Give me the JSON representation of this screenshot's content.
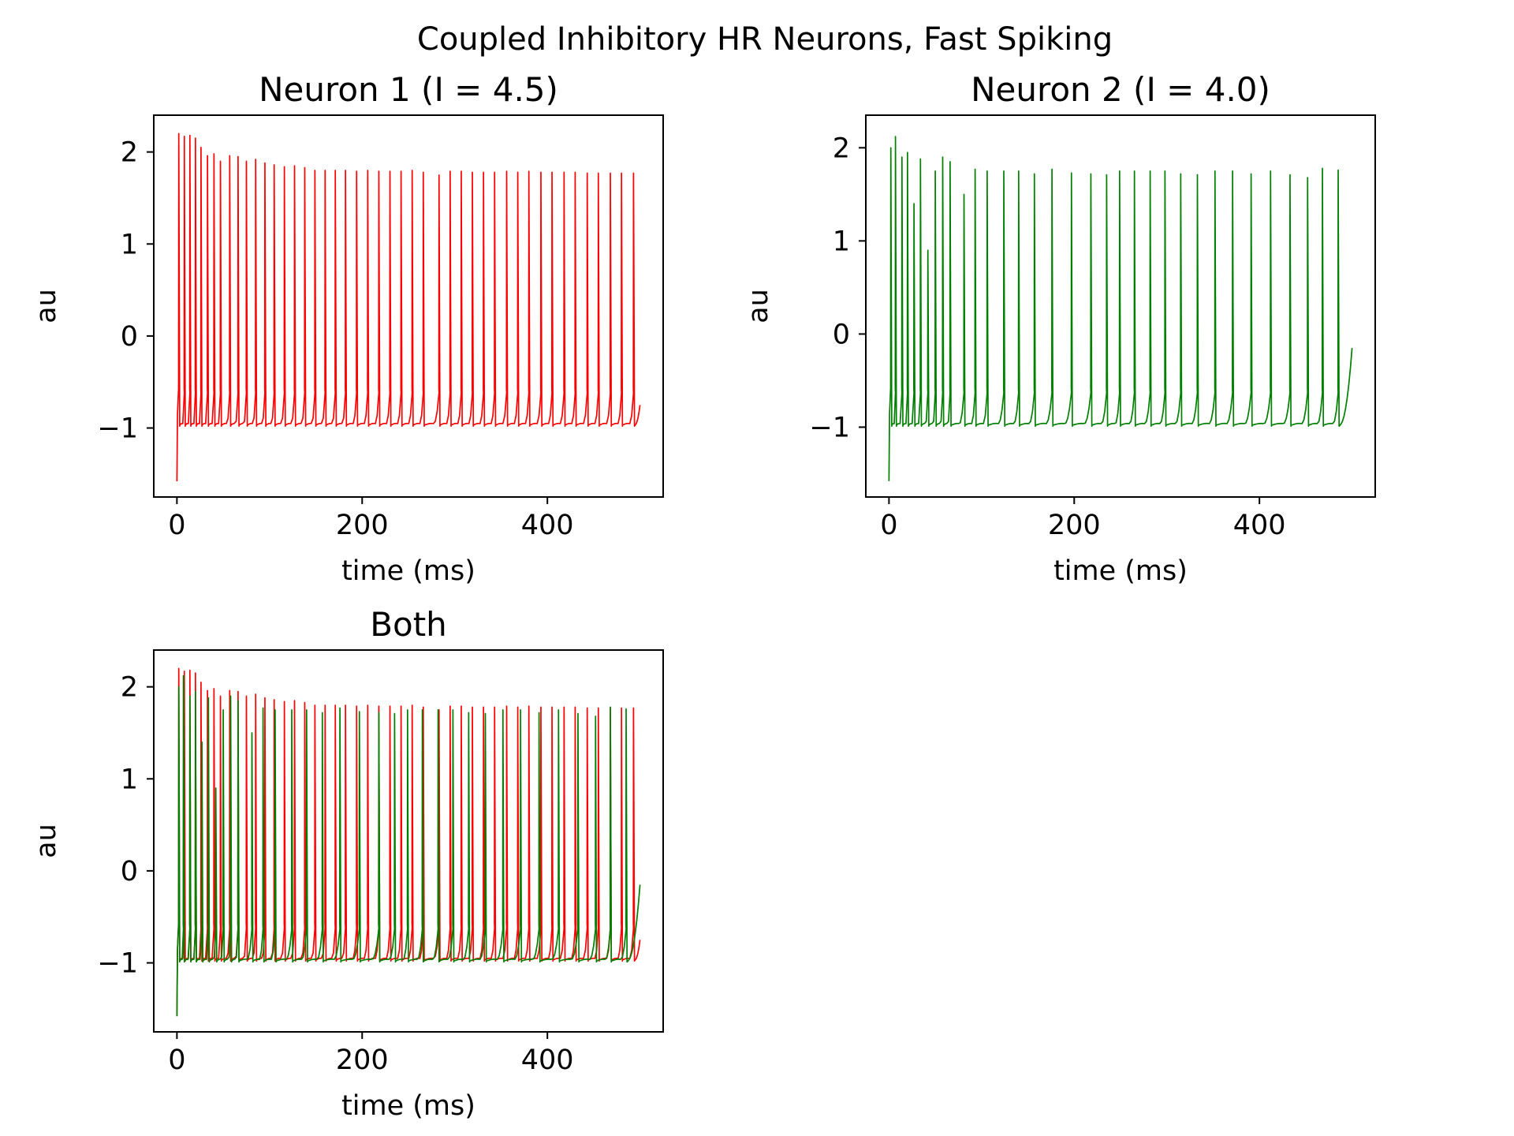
{
  "figure": {
    "suptitle": "Coupled Inhibitory HR Neurons, Fast Spiking"
  },
  "chart_data": [
    {
      "type": "line",
      "title": "Neuron 1 (I = 4.5)",
      "xlabel": "time (ms)",
      "ylabel": "au",
      "xlim": [
        -25,
        525
      ],
      "ylim": [
        -1.75,
        2.4
      ],
      "xticks": [
        0,
        200,
        400
      ],
      "xtick_labels": [
        "0",
        "200",
        "400"
      ],
      "yticks": [
        2,
        1,
        0,
        -1
      ],
      "ytick_labels": [
        "2",
        "1",
        "0",
        "−1"
      ],
      "grid": false,
      "series": [
        {
          "color": "#ff0000",
          "spike_times": [
            2,
            8,
            14,
            20,
            26,
            33,
            40,
            47,
            57,
            66,
            75,
            85,
            95,
            105,
            116,
            127,
            138,
            149,
            160,
            171,
            182,
            194,
            206,
            218,
            230,
            242,
            254,
            266,
            283,
            295,
            307,
            319,
            331,
            343,
            356,
            368,
            380,
            393,
            405,
            418,
            430,
            443,
            455,
            468,
            480,
            493
          ],
          "spike_peaks": [
            2.2,
            2.17,
            2.18,
            2.15,
            2.05,
            1.96,
            1.98,
            1.9,
            1.96,
            1.95,
            1.9,
            1.92,
            1.88,
            1.86,
            1.84,
            1.85,
            1.83,
            1.8,
            1.8,
            1.8,
            1.8,
            1.79,
            1.8,
            1.79,
            1.79,
            1.79,
            1.8,
            1.78,
            1.75,
            1.79,
            1.79,
            1.78,
            1.78,
            1.78,
            1.79,
            1.78,
            1.79,
            1.78,
            1.78,
            1.78,
            1.78,
            1.77,
            1.77,
            1.77,
            1.77,
            1.77
          ],
          "trough": -0.97,
          "start_value": -1.58,
          "end_value": -0.75,
          "t_end": 500
        }
      ]
    },
    {
      "type": "line",
      "title": "Neuron 2 (I = 4.0)",
      "xlabel": "time (ms)",
      "ylabel": "au",
      "xlim": [
        -25,
        525
      ],
      "ylim": [
        -1.75,
        2.35
      ],
      "xticks": [
        0,
        200,
        400
      ],
      "xtick_labels": [
        "0",
        "200",
        "400"
      ],
      "yticks": [
        2,
        1,
        0,
        -1
      ],
      "ytick_labels": [
        "2",
        "1",
        "0",
        "−1"
      ],
      "grid": false,
      "series": [
        {
          "color": "#008000",
          "spike_times": [
            2,
            7,
            14,
            20,
            27,
            34,
            42,
            50,
            58,
            66,
            81,
            93,
            106,
            124,
            140,
            157,
            176,
            197,
            218,
            235,
            249,
            265,
            282,
            298,
            315,
            333,
            352,
            371,
            391,
            412,
            433,
            452,
            468,
            485
          ],
          "spike_peaks": [
            2.0,
            2.12,
            1.9,
            1.95,
            1.4,
            1.88,
            0.9,
            1.75,
            1.9,
            1.85,
            1.5,
            1.77,
            1.75,
            1.75,
            1.75,
            1.72,
            1.77,
            1.73,
            1.72,
            1.71,
            1.75,
            1.75,
            1.75,
            1.75,
            1.72,
            1.71,
            1.75,
            1.75,
            1.72,
            1.75,
            1.71,
            1.68,
            1.78,
            1.76
          ],
          "trough": -0.98,
          "start_value": -1.58,
          "end_value": -0.15,
          "t_end": 500
        }
      ]
    },
    {
      "type": "line",
      "title": "Both",
      "xlabel": "time (ms)",
      "ylabel": "au",
      "xlim": [
        -25,
        525
      ],
      "ylim": [
        -1.75,
        2.4
      ],
      "xticks": [
        0,
        200,
        400
      ],
      "xtick_labels": [
        "0",
        "200",
        "400"
      ],
      "yticks": [
        2,
        1,
        0,
        -1
      ],
      "ytick_labels": [
        "2",
        "1",
        "0",
        "−1"
      ],
      "grid": false,
      "series": [
        {
          "color": "#ff0000",
          "spike_times": [
            2,
            8,
            14,
            20,
            26,
            33,
            40,
            47,
            57,
            66,
            75,
            85,
            95,
            105,
            116,
            127,
            138,
            149,
            160,
            171,
            182,
            194,
            206,
            218,
            230,
            242,
            254,
            266,
            283,
            295,
            307,
            319,
            331,
            343,
            356,
            368,
            380,
            393,
            405,
            418,
            430,
            443,
            455,
            468,
            480,
            493
          ],
          "spike_peaks": [
            2.2,
            2.17,
            2.18,
            2.15,
            2.05,
            1.96,
            1.98,
            1.9,
            1.96,
            1.95,
            1.9,
            1.92,
            1.88,
            1.86,
            1.84,
            1.85,
            1.83,
            1.8,
            1.8,
            1.8,
            1.8,
            1.79,
            1.8,
            1.79,
            1.79,
            1.79,
            1.8,
            1.78,
            1.75,
            1.79,
            1.79,
            1.78,
            1.78,
            1.78,
            1.79,
            1.78,
            1.79,
            1.78,
            1.78,
            1.78,
            1.78,
            1.77,
            1.77,
            1.77,
            1.77,
            1.77
          ],
          "trough": -0.97,
          "start_value": -1.58,
          "end_value": -0.75,
          "t_end": 500
        },
        {
          "color": "#008000",
          "spike_times": [
            2,
            7,
            14,
            20,
            27,
            34,
            42,
            50,
            58,
            66,
            81,
            93,
            106,
            124,
            140,
            157,
            176,
            197,
            218,
            235,
            249,
            265,
            282,
            298,
            315,
            333,
            352,
            371,
            391,
            412,
            433,
            452,
            468,
            485
          ],
          "spike_peaks": [
            2.0,
            2.12,
            1.9,
            1.95,
            1.4,
            1.88,
            0.9,
            1.75,
            1.9,
            1.85,
            1.5,
            1.77,
            1.75,
            1.75,
            1.75,
            1.72,
            1.77,
            1.73,
            1.72,
            1.71,
            1.75,
            1.75,
            1.75,
            1.75,
            1.72,
            1.71,
            1.75,
            1.75,
            1.72,
            1.75,
            1.71,
            1.68,
            1.78,
            1.76
          ],
          "trough": -0.98,
          "start_value": -1.58,
          "end_value": -0.15,
          "t_end": 500
        }
      ]
    }
  ]
}
